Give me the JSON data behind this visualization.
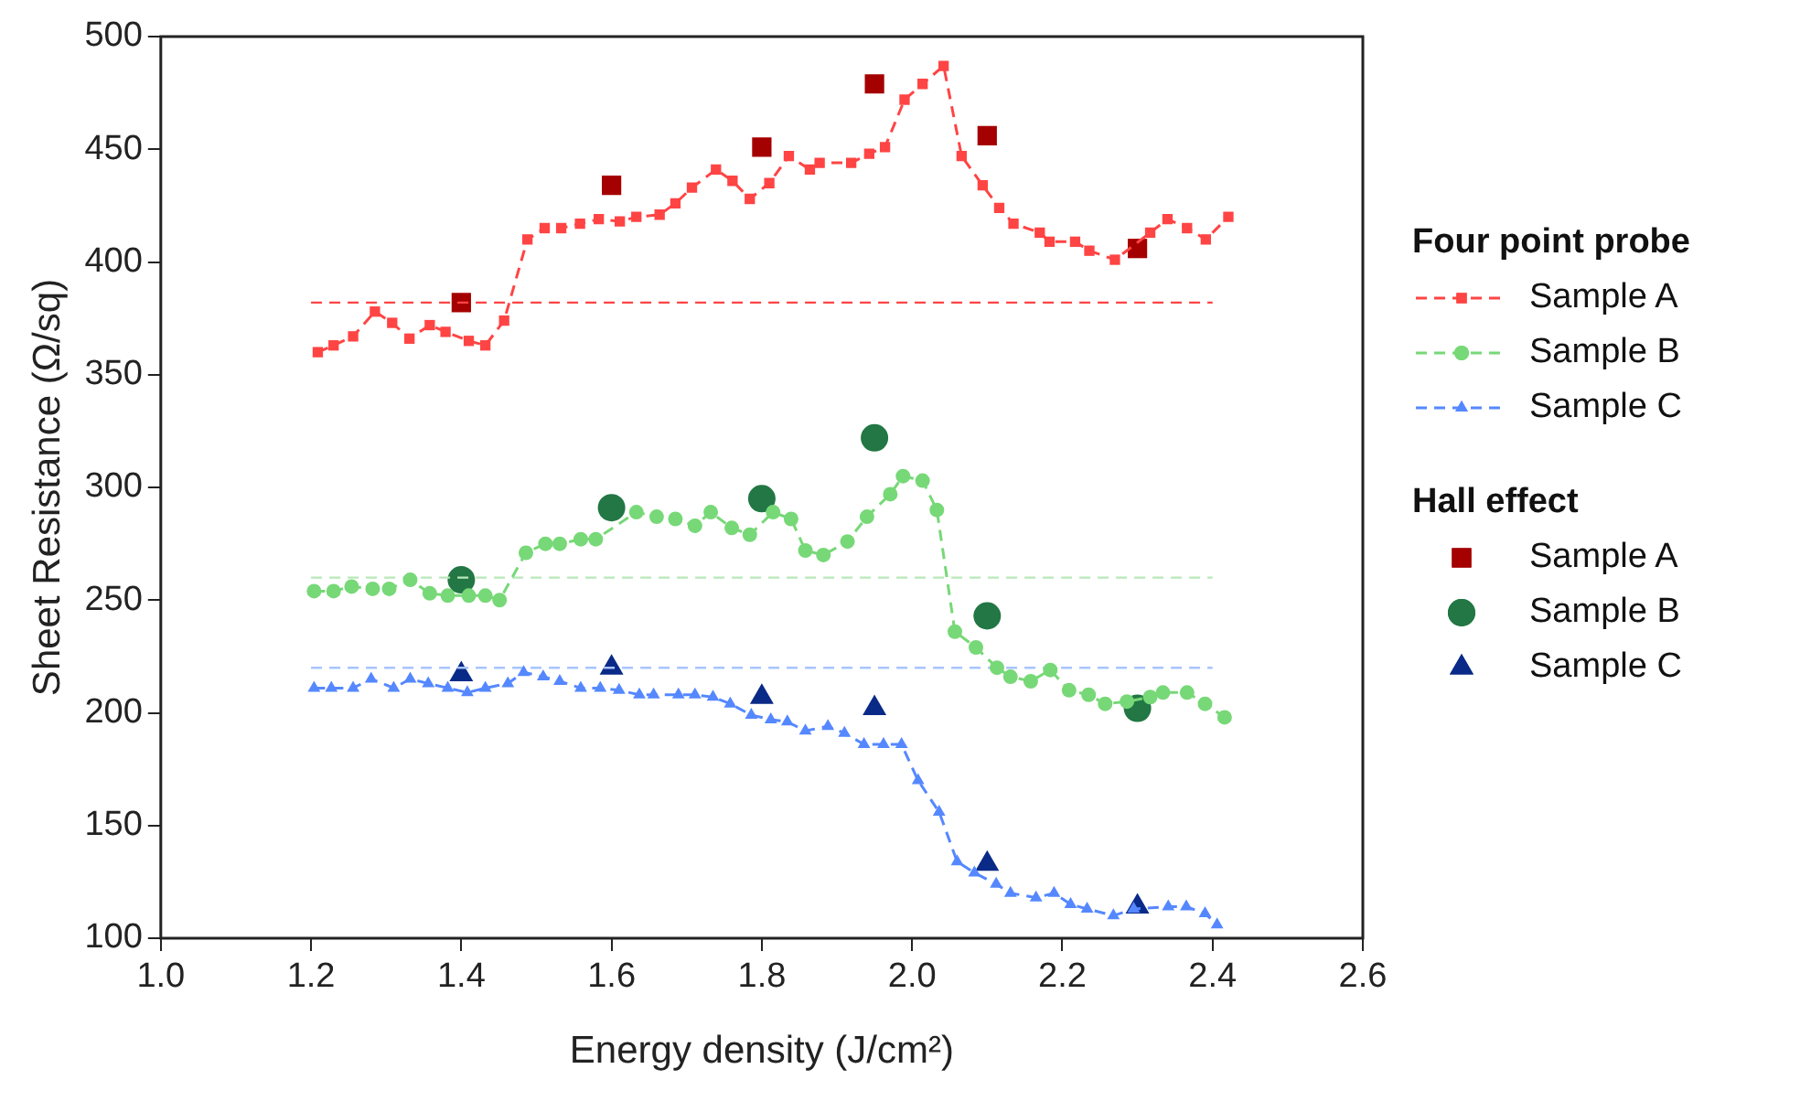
{
  "chart_data": {
    "type": "line",
    "xlabel": "Energy density (J/cm²)",
    "ylabel": "Sheet Resistance (Ω/sq)",
    "legend_title": "Four point probe",
    "annotations": [
      "Hall effect"
    ],
    "legend": "right",
    "grid": false,
    "xlim": [
      1.0,
      2.6
    ],
    "xticks": [
      {
        "value": 1,
        "label": "1.0"
      },
      1.2,
      1.4,
      1.6,
      1.8,
      {
        "value": 2,
        "label": "2.0"
      },
      2.2,
      2.4,
      2.6
    ],
    "ylim": [
      100,
      500
    ],
    "yticks": [
      100,
      150,
      200,
      250,
      300,
      350,
      400,
      450,
      500
    ],
    "series": [
      {
        "name": "Sample A",
        "type": "line",
        "marker": "square",
        "line_style": "dashed",
        "color": "#ff4444",
        "x": [
          1.209,
          1.23,
          1.256,
          1.285,
          1.308,
          1.331,
          1.358,
          1.379,
          1.41,
          1.432,
          1.457,
          1.488,
          1.511,
          1.533,
          1.558,
          1.583,
          1.611,
          1.633,
          1.664,
          1.685,
          1.707,
          1.739,
          1.761,
          1.784,
          1.81,
          1.836,
          1.864,
          1.877,
          1.919,
          1.943,
          1.964,
          1.99,
          2.014,
          2.042,
          2.066,
          2.094,
          2.116,
          2.135,
          2.17,
          2.183,
          2.217,
          2.236,
          2.27,
          2.317,
          2.34,
          2.366,
          2.391,
          2.421
        ],
        "values": [
          360,
          363,
          367,
          378,
          373,
          366,
          372,
          369,
          365,
          363,
          374,
          410,
          415,
          415,
          417,
          419,
          418,
          420,
          421,
          426,
          433,
          441,
          436,
          428,
          435,
          447,
          441,
          444,
          444,
          448,
          451,
          472,
          479,
          487,
          447,
          434,
          424,
          417,
          413,
          409,
          409,
          405,
          401,
          413,
          419,
          415,
          410,
          420
        ]
      },
      {
        "name": "Sample B",
        "type": "line",
        "marker": "circle",
        "line_style": "dashed",
        "color": "#77d877",
        "x": [
          1.204,
          1.23,
          1.254,
          1.282,
          1.304,
          1.332,
          1.358,
          1.382,
          1.41,
          1.432,
          1.451,
          1.486,
          1.512,
          1.531,
          1.559,
          1.579,
          1.633,
          1.66,
          1.685,
          1.711,
          1.732,
          1.76,
          1.784,
          1.815,
          1.839,
          1.858,
          1.882,
          1.914,
          1.94,
          1.971,
          1.988,
          2.014,
          2.033,
          2.057,
          2.085,
          2.113,
          2.131,
          2.158,
          2.184,
          2.209,
          2.235,
          2.257,
          2.286,
          2.317,
          2.334,
          2.366,
          2.39,
          2.416
        ],
        "values": [
          254,
          254,
          256,
          255,
          255,
          259,
          253,
          252,
          252,
          252,
          250,
          271,
          275,
          275,
          277,
          277,
          289,
          287,
          286,
          283,
          289,
          282,
          279,
          289,
          286,
          272,
          270,
          276,
          287,
          297,
          305,
          303,
          290,
          236,
          229,
          220,
          216,
          214,
          219,
          210,
          208,
          204,
          205,
          207,
          209,
          209,
          204,
          198
        ]
      },
      {
        "name": "Sample C",
        "type": "line",
        "marker": "triangle",
        "line_style": "dashed",
        "color": "#5588ff",
        "x": [
          1.204,
          1.227,
          1.256,
          1.28,
          1.31,
          1.332,
          1.356,
          1.382,
          1.408,
          1.432,
          1.462,
          1.483,
          1.509,
          1.531,
          1.559,
          1.585,
          1.61,
          1.637,
          1.656,
          1.689,
          1.711,
          1.735,
          1.758,
          1.786,
          1.812,
          1.834,
          1.858,
          1.888,
          1.91,
          1.936,
          1.962,
          1.986,
          2.008,
          2.036,
          2.06,
          2.083,
          2.112,
          2.131,
          2.165,
          2.189,
          2.211,
          2.233,
          2.268,
          2.295,
          2.341,
          2.365,
          2.39,
          2.406
        ],
        "values": [
          211,
          211,
          211,
          215,
          211,
          215,
          213,
          211,
          209,
          211,
          213,
          218,
          216,
          214,
          211,
          211,
          210,
          208,
          208,
          208,
          208,
          207,
          204,
          199,
          197,
          196,
          192,
          194,
          191,
          186,
          186,
          186,
          170,
          156,
          134,
          129,
          124,
          120,
          118,
          120,
          115,
          113,
          110,
          113,
          114,
          114,
          111,
          106
        ]
      },
      {
        "type": "line",
        "marker": "none",
        "line_style": "dashed",
        "color": "#ff4444",
        "x": [
          1.2,
          2.4
        ],
        "values": [
          382,
          382
        ]
      },
      {
        "type": "line",
        "marker": "none",
        "line_style": "dashed",
        "color": "#b8e8b8",
        "x": [
          1.2,
          2.4
        ],
        "values": [
          260,
          260
        ]
      },
      {
        "type": "line",
        "marker": "none",
        "line_style": "dashed",
        "color": "#a8c4ff",
        "x": [
          1.2,
          2.4
        ],
        "values": [
          220,
          220
        ]
      },
      {
        "name": "Sample A",
        "type": "scatter",
        "marker": "square",
        "color": "#a50000",
        "x": [
          1.4,
          1.6,
          1.8,
          1.95,
          2.1,
          2.3
        ],
        "values": [
          382,
          434,
          451,
          479,
          456,
          406
        ]
      },
      {
        "name": "Sample B",
        "type": "scatter",
        "marker": "circle",
        "color": "#227744",
        "x": [
          1.4,
          1.6,
          1.8,
          1.95,
          2.1,
          2.3
        ],
        "values": [
          259,
          291,
          295,
          322,
          243,
          202
        ]
      },
      {
        "name": "Sample C",
        "type": "scatter",
        "marker": "triangle",
        "color": "#0a2a88",
        "x": [
          1.4,
          1.6,
          1.8,
          1.95,
          2.1,
          2.3
        ],
        "values": [
          217,
          220,
          207,
          202,
          133,
          114
        ]
      }
    ]
  }
}
